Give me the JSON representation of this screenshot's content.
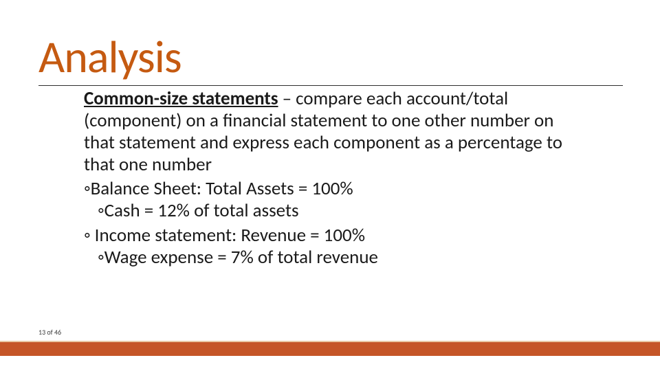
{
  "slide": {
    "title": "Analysis",
    "title_color": "#c55a11",
    "title_fontsize": 66,
    "rule_color": "#2e2e2e",
    "body": {
      "term": "Common-size statements",
      "definition": " – compare each account/total (component) on a financial statement to one other number on that statement and express each component as a percentage to that one number",
      "bullets": [
        {
          "level": 1,
          "marker": "◦",
          "text": "Balance Sheet:  Total Assets = 100%"
        },
        {
          "level": 2,
          "marker": "◦",
          "text": "Cash = 12% of total assets"
        },
        {
          "level": 1,
          "marker": "◦",
          "text": " Income statement:  Revenue = 100%"
        },
        {
          "level": 2,
          "marker": "◦",
          "text": "Wage expense = 7% of total revenue"
        }
      ],
      "body_fontsize": 27,
      "text_color": "#1a1a1a"
    },
    "footer": {
      "page_label": "13 of 46",
      "band_color": "#c55527",
      "band_border_color": "#e9c9a6",
      "page_fontsize": 10
    },
    "background_color": "#ffffff"
  }
}
